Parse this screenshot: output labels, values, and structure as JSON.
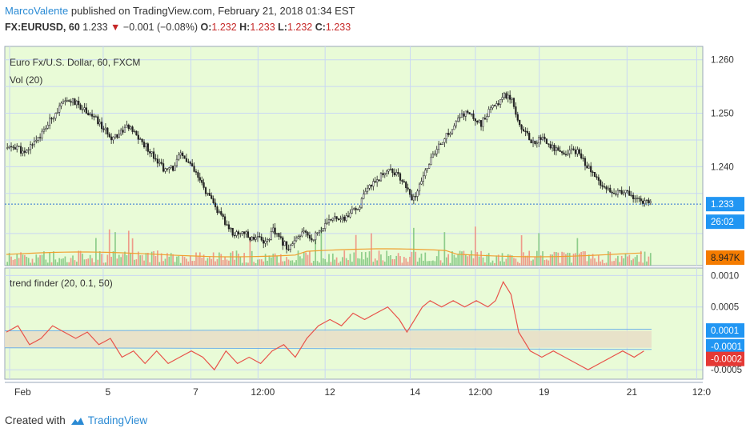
{
  "header": {
    "author": "MarcoValente",
    "published_text": "published on TradingView.com, February 21, 2018 01:34 EST"
  },
  "symbol_bar": {
    "symbol": "FX:EURUSD, 60",
    "last": "1.233",
    "change": "−0.001 (−0.08%)",
    "o_label": "O:",
    "o_value": "1.232",
    "h_label": "H:",
    "h_value": "1.233",
    "l_label": "L:",
    "l_value": "1.232",
    "c_label": "C:",
    "c_value": "1.233"
  },
  "footer": {
    "created_with": "Created with",
    "brand": "TradingView"
  },
  "colors": {
    "pane_bg": "#e9fbd7",
    "grid": "#c9d7f4",
    "up": "#7cc47c",
    "down": "#ef8a7c",
    "price_line": "#2a6fd4",
    "vol_ma": "#f0a030",
    "indicator": "#e8534a",
    "band_fill": "#e8dfc8",
    "band_line": "#6fb0e8",
    "last_badge": "#2196f3",
    "vol_badge": "#f57c00",
    "neg_badge": "#e53935"
  },
  "chart_data": [
    {
      "type": "candlestick",
      "title": "Euro Fx/U.S. Dollar, 60, FXCM",
      "subtitle": "Vol (20)",
      "x_ticks": [
        "Feb",
        "5",
        "7",
        "12:00",
        "12",
        "14",
        "12:00",
        "19",
        "21",
        "12:0"
      ],
      "y_ticks": [
        "1.260",
        "1.250",
        "1.240"
      ],
      "ylim": [
        1.2215,
        1.2625
      ],
      "last_price": "1.233",
      "countdown": "26:02",
      "volume_label": "8.947K",
      "close_path": [
        [
          0,
          1.2434
        ],
        [
          5,
          1.2438
        ],
        [
          9,
          1.2422
        ],
        [
          13,
          1.2445
        ],
        [
          18,
          1.2462
        ],
        [
          22,
          1.2485
        ],
        [
          25,
          1.2502
        ],
        [
          29,
          1.2518
        ],
        [
          33,
          1.2524
        ],
        [
          37,
          1.2515
        ],
        [
          41,
          1.2505
        ],
        [
          46,
          1.2488
        ],
        [
          50,
          1.247
        ],
        [
          54,
          1.2456
        ],
        [
          58,
          1.2462
        ],
        [
          62,
          1.2476
        ],
        [
          66,
          1.2462
        ],
        [
          70,
          1.2445
        ],
        [
          74,
          1.243
        ],
        [
          78,
          1.2412
        ],
        [
          82,
          1.2392
        ],
        [
          86,
          1.2398
        ],
        [
          90,
          1.2422
        ],
        [
          94,
          1.2408
        ],
        [
          98,
          1.2385
        ],
        [
          102,
          1.236
        ],
        [
          106,
          1.2335
        ],
        [
          110,
          1.2312
        ],
        [
          114,
          1.229
        ],
        [
          118,
          1.2272
        ],
        [
          122,
          1.228
        ],
        [
          126,
          1.2265
        ],
        [
          130,
          1.2272
        ],
        [
          134,
          1.2258
        ],
        [
          138,
          1.228
        ],
        [
          142,
          1.2262
        ],
        [
          146,
          1.2248
        ],
        [
          150,
          1.2262
        ],
        [
          154,
          1.2278
        ],
        [
          158,
          1.2265
        ],
        [
          162,
          1.228
        ],
        [
          166,
          1.2292
        ],
        [
          170,
          1.231
        ],
        [
          174,
          1.23
        ],
        [
          178,
          1.2312
        ],
        [
          182,
          1.2322
        ],
        [
          186,
          1.235
        ],
        [
          190,
          1.2372
        ],
        [
          194,
          1.2382
        ],
        [
          198,
          1.2398
        ],
        [
          202,
          1.2385
        ],
        [
          206,
          1.2372
        ],
        [
          210,
          1.2335
        ],
        [
          214,
          1.2362
        ],
        [
          218,
          1.2402
        ],
        [
          222,
          1.2425
        ],
        [
          226,
          1.245
        ],
        [
          230,
          1.2465
        ],
        [
          234,
          1.2488
        ],
        [
          238,
          1.2502
        ],
        [
          242,
          1.2492
        ],
        [
          246,
          1.248
        ],
        [
          250,
          1.2502
        ],
        [
          254,
          1.2518
        ],
        [
          258,
          1.2535
        ],
        [
          262,
          1.253
        ],
        [
          265,
          1.2488
        ],
        [
          269,
          1.2462
        ],
        [
          273,
          1.2445
        ],
        [
          277,
          1.2455
        ],
        [
          281,
          1.2442
        ],
        [
          285,
          1.2432
        ],
        [
          289,
          1.2418
        ],
        [
          293,
          1.2432
        ],
        [
          297,
          1.2425
        ],
        [
          301,
          1.2402
        ],
        [
          305,
          1.238
        ],
        [
          309,
          1.2368
        ],
        [
          313,
          1.2358
        ],
        [
          317,
          1.2352
        ],
        [
          321,
          1.235
        ],
        [
          325,
          1.2345
        ],
        [
          328,
          1.2338
        ],
        [
          331,
          1.2332
        ]
      ],
      "x_max": 335
    },
    {
      "type": "line",
      "title": "trend finder (20, 0.1, 50)",
      "y_ticks": [
        "0.0010",
        "0.0005",
        "-0.0005"
      ],
      "ylim": [
        -0.00065,
        0.00112
      ],
      "band": [
        -0.00015,
        0.00012
      ],
      "value_labels": [
        "0.0001",
        "-0.0001",
        "-0.0002"
      ],
      "series": [
        [
          0,
          0.0001
        ],
        [
          6,
          0.0002
        ],
        [
          12,
          -0.0001
        ],
        [
          18,
          0.0
        ],
        [
          24,
          0.0002
        ],
        [
          30,
          0.0001
        ],
        [
          36,
          0.0
        ],
        [
          42,
          0.0001
        ],
        [
          48,
          -0.0001
        ],
        [
          54,
          0.0
        ],
        [
          60,
          -0.0003
        ],
        [
          66,
          -0.0002
        ],
        [
          72,
          -0.0004
        ],
        [
          78,
          -0.0002
        ],
        [
          84,
          -0.0004
        ],
        [
          90,
          -0.0003
        ],
        [
          96,
          -0.0002
        ],
        [
          102,
          -0.0003
        ],
        [
          108,
          -0.0005
        ],
        [
          114,
          -0.0002
        ],
        [
          120,
          -0.0004
        ],
        [
          126,
          -0.0003
        ],
        [
          132,
          -0.0004
        ],
        [
          138,
          -0.0002
        ],
        [
          144,
          -0.0001
        ],
        [
          150,
          -0.0003
        ],
        [
          156,
          0.0
        ],
        [
          162,
          0.0002
        ],
        [
          168,
          0.0003
        ],
        [
          174,
          0.0002
        ],
        [
          180,
          0.0004
        ],
        [
          186,
          0.0003
        ],
        [
          192,
          0.0004
        ],
        [
          198,
          0.0005
        ],
        [
          204,
          0.0003
        ],
        [
          208,
          0.0001
        ],
        [
          212,
          0.0003
        ],
        [
          216,
          0.0005
        ],
        [
          220,
          0.0006
        ],
        [
          226,
          0.0005
        ],
        [
          232,
          0.0006
        ],
        [
          238,
          0.0005
        ],
        [
          244,
          0.0006
        ],
        [
          250,
          0.0005
        ],
        [
          254,
          0.0006
        ],
        [
          258,
          0.0009
        ],
        [
          262,
          0.0007
        ],
        [
          266,
          0.0001
        ],
        [
          272,
          -0.0002
        ],
        [
          278,
          -0.0003
        ],
        [
          284,
          -0.0002
        ],
        [
          290,
          -0.0003
        ],
        [
          296,
          -0.0004
        ],
        [
          302,
          -0.0005
        ],
        [
          308,
          -0.0004
        ],
        [
          314,
          -0.0003
        ],
        [
          320,
          -0.0002
        ],
        [
          326,
          -0.0003
        ],
        [
          331,
          -0.0002
        ]
      ]
    }
  ]
}
